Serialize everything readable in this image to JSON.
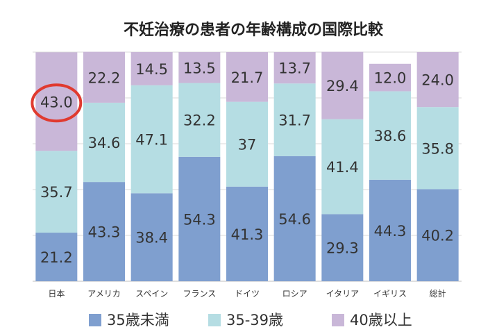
{
  "chart_data": {
    "type": "bar",
    "stacked": true,
    "normalized_100": true,
    "title": "不妊治療の患者の年齢構成の国際比較",
    "categories": [
      "日本",
      "アメリカ",
      "スペイン",
      "フランス",
      "ドイツ",
      "ロシア",
      "イタリア",
      "イギリス",
      "総計"
    ],
    "series": [
      {
        "name": "35歳未満",
        "color": "#7f9fcf",
        "values": [
          21.2,
          43.3,
          38.4,
          54.3,
          41.3,
          54.6,
          29.3,
          44.3,
          40.2
        ],
        "labels": [
          "21.2",
          "43.3",
          "38.4",
          "54.3",
          "41.3",
          "54.6",
          "29.3",
          "44.3",
          "40.2"
        ]
      },
      {
        "name": "35-39歳",
        "color": "#b5dde3",
        "values": [
          35.7,
          34.6,
          47.1,
          32.2,
          37,
          31.7,
          41.4,
          38.6,
          35.8
        ],
        "labels": [
          "35.7",
          "34.6",
          "47.1",
          "32.2",
          "37",
          "31.7",
          "41.4",
          "38.6",
          "35.8"
        ]
      },
      {
        "name": "40歳以上",
        "color": "#c9b7d8",
        "values": [
          43.0,
          22.2,
          14.5,
          13.5,
          21.7,
          13.7,
          29.4,
          12.0,
          24.0
        ],
        "labels": [
          "43.0",
          "22.2",
          "14.5",
          "13.5",
          "21.7",
          "13.7",
          "29.4",
          "12.0",
          "24.0"
        ]
      }
    ],
    "ylim": [
      0,
      100
    ],
    "grid": true,
    "legend_position": "bottom",
    "highlight": {
      "category_index": 0,
      "series_index": 2,
      "color": "#e03a2f"
    }
  }
}
